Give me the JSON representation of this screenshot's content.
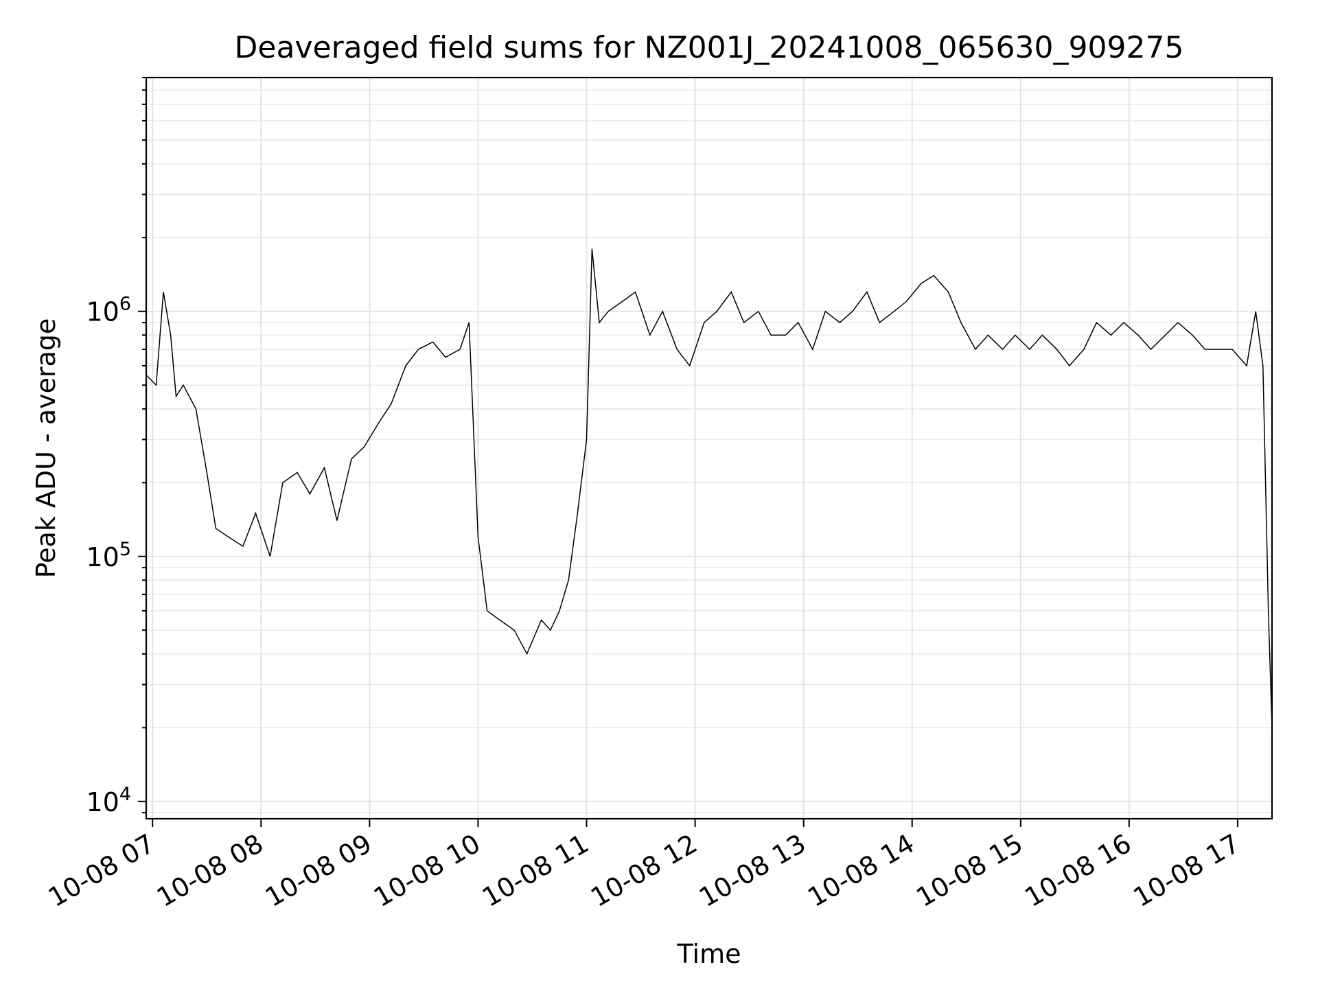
{
  "chart_data": {
    "type": "line",
    "title": "Deaveraged field sums for NZ001J_20241008_065630_909275",
    "xlabel": "Time",
    "ylabel": "Peak ADU - average",
    "yscale": "log",
    "ylim": [
      8500,
      9000000
    ],
    "xlim": [
      "2024-10-08T06:56:30",
      "2024-10-08T17:19:00"
    ],
    "x_ticks": [
      "2024-10-08T07:00",
      "2024-10-08T08:00",
      "2024-10-08T09:00",
      "2024-10-08T10:00",
      "2024-10-08T11:00",
      "2024-10-08T12:00",
      "2024-10-08T13:00",
      "2024-10-08T14:00",
      "2024-10-08T15:00",
      "2024-10-08T16:00",
      "2024-10-08T17:00"
    ],
    "x_tick_labels": [
      "10-08 07",
      "10-08 08",
      "10-08 09",
      "10-08 10",
      "10-08 11",
      "10-08 12",
      "10-08 13",
      "10-08 14",
      "10-08 15",
      "10-08 16",
      "10-08 17"
    ],
    "y_ticks": [
      10000,
      100000,
      1000000
    ],
    "y_tick_labels": [
      {
        "base": "10",
        "exp": "4"
      },
      {
        "base": "10",
        "exp": "5"
      },
      {
        "base": "10",
        "exp": "6"
      }
    ],
    "grid": true,
    "legend": "none",
    "line_color": "#000000",
    "series": [
      {
        "x": [
          "2024-10-08T06:56:30",
          "2024-10-08T07:02:00",
          "2024-10-08T07:06:00",
          "2024-10-08T07:10:00",
          "2024-10-08T07:13:00",
          "2024-10-08T07:17:00",
          "2024-10-08T07:24:00",
          "2024-10-08T07:30:00",
          "2024-10-08T07:35:00",
          "2024-10-08T07:42:00",
          "2024-10-08T07:50:00",
          "2024-10-08T07:57:00",
          "2024-10-08T08:05:00",
          "2024-10-08T08:12:00",
          "2024-10-08T08:20:00",
          "2024-10-08T08:27:00",
          "2024-10-08T08:35:00",
          "2024-10-08T08:42:00",
          "2024-10-08T08:50:00",
          "2024-10-08T08:57:00",
          "2024-10-08T09:05:00",
          "2024-10-08T09:12:00",
          "2024-10-08T09:20:00",
          "2024-10-08T09:27:00",
          "2024-10-08T09:35:00",
          "2024-10-08T09:42:00",
          "2024-10-08T09:50:00",
          "2024-10-08T09:55:00",
          "2024-10-08T10:00:00",
          "2024-10-08T10:05:00",
          "2024-10-08T10:12:00",
          "2024-10-08T10:20:00",
          "2024-10-08T10:27:00",
          "2024-10-08T10:35:00",
          "2024-10-08T10:40:00",
          "2024-10-08T10:45:00",
          "2024-10-08T10:50:00",
          "2024-10-08T10:55:00",
          "2024-10-08T11:00:00",
          "2024-10-08T11:03:00",
          "2024-10-08T11:07:00",
          "2024-10-08T11:12:00",
          "2024-10-08T11:20:00",
          "2024-10-08T11:27:00",
          "2024-10-08T11:35:00",
          "2024-10-08T11:42:00",
          "2024-10-08T11:50:00",
          "2024-10-08T11:57:00",
          "2024-10-08T12:05:00",
          "2024-10-08T12:12:00",
          "2024-10-08T12:20:00",
          "2024-10-08T12:27:00",
          "2024-10-08T12:35:00",
          "2024-10-08T12:42:00",
          "2024-10-08T12:50:00",
          "2024-10-08T12:57:00",
          "2024-10-08T13:05:00",
          "2024-10-08T13:12:00",
          "2024-10-08T13:20:00",
          "2024-10-08T13:27:00",
          "2024-10-08T13:35:00",
          "2024-10-08T13:42:00",
          "2024-10-08T13:50:00",
          "2024-10-08T13:57:00",
          "2024-10-08T14:05:00",
          "2024-10-08T14:12:00",
          "2024-10-08T14:20:00",
          "2024-10-08T14:27:00",
          "2024-10-08T14:35:00",
          "2024-10-08T14:42:00",
          "2024-10-08T14:50:00",
          "2024-10-08T14:57:00",
          "2024-10-08T15:05:00",
          "2024-10-08T15:12:00",
          "2024-10-08T15:20:00",
          "2024-10-08T15:27:00",
          "2024-10-08T15:35:00",
          "2024-10-08T15:42:00",
          "2024-10-08T15:50:00",
          "2024-10-08T15:57:00",
          "2024-10-08T16:05:00",
          "2024-10-08T16:12:00",
          "2024-10-08T16:20:00",
          "2024-10-08T16:27:00",
          "2024-10-08T16:35:00",
          "2024-10-08T16:42:00",
          "2024-10-08T16:50:00",
          "2024-10-08T16:57:00",
          "2024-10-08T17:05:00",
          "2024-10-08T17:10:00",
          "2024-10-08T17:14:00",
          "2024-10-08T17:17:00",
          "2024-10-08T17:19:00"
        ],
        "y": [
          550000,
          500000,
          1200000,
          800000,
          450000,
          500000,
          400000,
          220000,
          130000,
          120000,
          110000,
          150000,
          100000,
          200000,
          220000,
          180000,
          230000,
          140000,
          250000,
          280000,
          350000,
          420000,
          600000,
          700000,
          750000,
          650000,
          700000,
          900000,
          120000,
          60000,
          55000,
          50000,
          40000,
          55000,
          50000,
          60000,
          80000,
          150000,
          300000,
          1800000,
          900000,
          1000000,
          1100000,
          1200000,
          800000,
          1000000,
          700000,
          600000,
          900000,
          1000000,
          1200000,
          900000,
          1000000,
          800000,
          800000,
          900000,
          700000,
          1000000,
          900000,
          1000000,
          1200000,
          900000,
          1000000,
          1100000,
          1300000,
          1400000,
          1200000,
          900000,
          700000,
          800000,
          700000,
          800000,
          700000,
          800000,
          700000,
          600000,
          700000,
          900000,
          800000,
          900000,
          800000,
          700000,
          800000,
          900000,
          800000,
          700000,
          700000,
          700000,
          600000,
          1000000,
          600000,
          60000,
          20000
        ]
      }
    ]
  }
}
